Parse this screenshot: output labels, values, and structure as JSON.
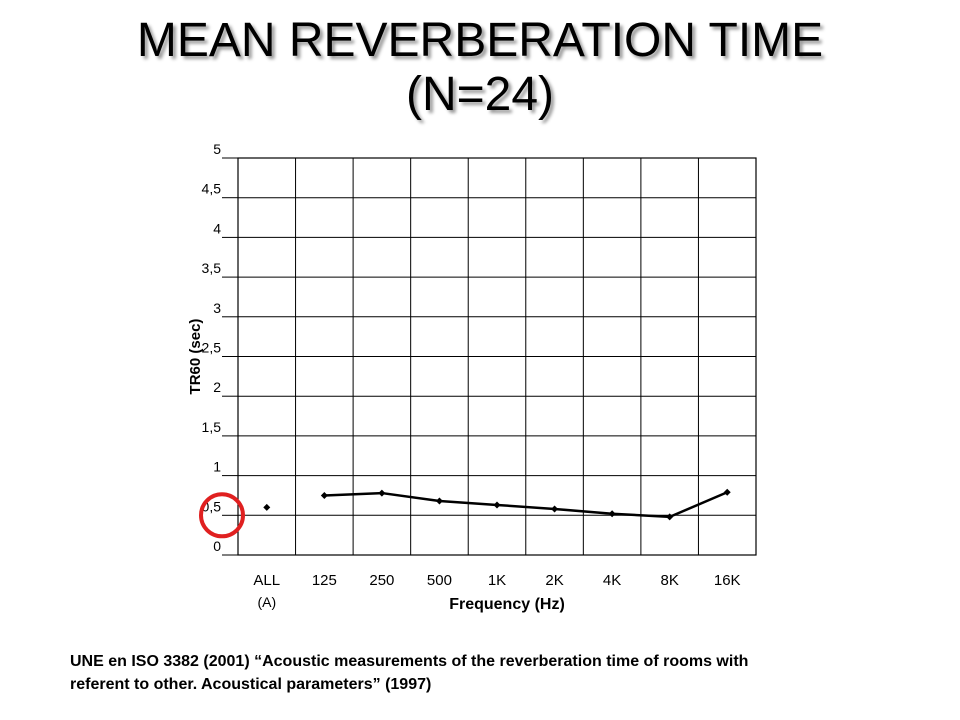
{
  "title": {
    "line1": "MEAN REVERBERATION TIME",
    "line2": "(N=24)"
  },
  "footnote": {
    "line1": "UNE en ISO 3382 (2001) “Acoustic measurements of the reverberation time of rooms with",
    "line2": "referent to other. Acoustical parameters” (1997)"
  },
  "chart_data": {
    "type": "line",
    "categories": [
      "ALL",
      "125",
      "250",
      "500",
      "1K",
      "2K",
      "4K",
      "8K",
      "16K"
    ],
    "category_sublabels": [
      "(A)",
      "",
      "",
      "",
      "",
      "",
      "",
      "",
      ""
    ],
    "values": [
      0.6,
      0.75,
      0.78,
      0.68,
      0.63,
      0.58,
      0.52,
      0.48,
      0.79
    ],
    "connected_from_index": 1,
    "ylim": [
      0,
      5
    ],
    "yticks": [
      "0",
      "0,5",
      "1",
      "1,5",
      "2",
      "2,5",
      "3",
      "3,5",
      "4",
      "4,5",
      "5"
    ],
    "xlabel": "Frequency (Hz)",
    "ylabel": "TR60 (sec)",
    "grid": true,
    "highlight": {
      "tick": "0,5",
      "shape": "circle",
      "color": "#e02020"
    },
    "line_color": "#000000"
  }
}
